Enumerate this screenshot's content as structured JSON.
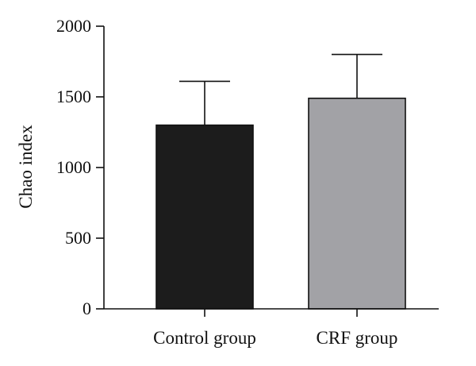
{
  "chart_data": {
    "type": "bar",
    "categories": [
      "Control group",
      "CRF group"
    ],
    "values": [
      1300,
      1490
    ],
    "error_upper": [
      1610,
      1800
    ],
    "ylabel": "Chao index",
    "xlabel": "",
    "ylim": [
      0,
      2000
    ],
    "yticks": [
      0,
      500,
      1000,
      1500,
      2000
    ],
    "yticks_text": [
      "0",
      "500",
      "1000",
      "1500",
      "2000"
    ],
    "bar_colors": [
      "#1c1c1c",
      "#a2a2a6"
    ],
    "grid": false,
    "legend": "none"
  }
}
